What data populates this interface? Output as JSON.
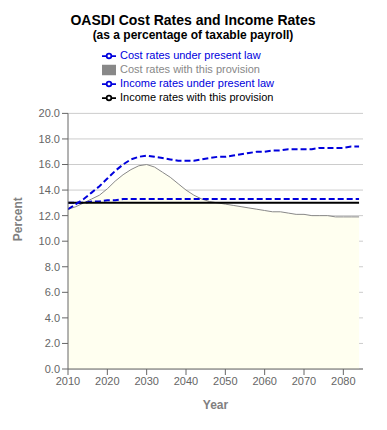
{
  "chart_data": {
    "type": "line",
    "title": "OASDI Cost Rates and Income Rates",
    "subtitle": "(as a percentage of taxable payroll)",
    "x_label": "Year",
    "y_label": "Percent",
    "x": [
      2010,
      2012,
      2014,
      2016,
      2018,
      2020,
      2022,
      2024,
      2026,
      2028,
      2030,
      2032,
      2034,
      2036,
      2038,
      2040,
      2042,
      2044,
      2046,
      2048,
      2050,
      2052,
      2054,
      2056,
      2058,
      2060,
      2062,
      2064,
      2066,
      2068,
      2070,
      2072,
      2074,
      2076,
      2078,
      2080,
      2082,
      2084
    ],
    "xlim": [
      2010,
      2085
    ],
    "xticks": [
      2010,
      2020,
      2030,
      2040,
      2050,
      2060,
      2070,
      2080
    ],
    "ylim": [
      0.0,
      20.0
    ],
    "yticks": [
      {
        "value": 0.0,
        "label": "0.0"
      },
      {
        "value": 2.0,
        "label": "2.0"
      },
      {
        "value": 4.0,
        "label": "4.0"
      },
      {
        "value": 6.0,
        "label": "6.0"
      },
      {
        "value": 8.0,
        "label": "8.0"
      },
      {
        "value": 10.0,
        "label": "10.0"
      },
      {
        "value": 12.0,
        "label": "12.0"
      },
      {
        "value": 14.0,
        "label": "14.0"
      },
      {
        "value": 16.0,
        "label": "16.0"
      },
      {
        "value": 18.0,
        "label": "18.0"
      },
      {
        "value": 20.0,
        "label": "20.0"
      }
    ],
    "grid": "y",
    "legend": "top",
    "series": [
      {
        "name": "Cost rates with this provision",
        "type": "area",
        "color": "#fffff0",
        "line_color": "#888888",
        "line_style": "solid",
        "values": [
          12.5,
          12.7,
          13.0,
          13.3,
          13.6,
          14.1,
          14.7,
          15.2,
          15.6,
          15.9,
          16.0,
          15.8,
          15.4,
          15.0,
          14.5,
          14.0,
          13.6,
          13.3,
          13.1,
          13.0,
          12.9,
          12.8,
          12.7,
          12.6,
          12.5,
          12.4,
          12.3,
          12.3,
          12.2,
          12.1,
          12.1,
          12.0,
          12.0,
          12.0,
          11.9,
          11.9,
          11.9,
          11.9
        ]
      },
      {
        "name": "Income rates under present law",
        "type": "line",
        "color": "#0000dd",
        "line_style": "dashed",
        "values": [
          13.0,
          13.0,
          13.0,
          13.1,
          13.1,
          13.2,
          13.2,
          13.3,
          13.3,
          13.3,
          13.3,
          13.3,
          13.3,
          13.3,
          13.3,
          13.3,
          13.3,
          13.3,
          13.3,
          13.3,
          13.3,
          13.3,
          13.3,
          13.3,
          13.3,
          13.3,
          13.3,
          13.3,
          13.3,
          13.3,
          13.3,
          13.3,
          13.3,
          13.3,
          13.3,
          13.3,
          13.3,
          13.3
        ]
      },
      {
        "name": "Income rates with this provision",
        "type": "line",
        "color": "#000000",
        "line_style": "solid",
        "values": [
          13.0,
          13.0,
          13.0,
          13.0,
          13.0,
          13.0,
          13.0,
          13.0,
          13.0,
          13.0,
          13.0,
          13.0,
          13.0,
          13.0,
          13.0,
          13.0,
          13.0,
          13.0,
          13.0,
          13.0,
          13.0,
          13.0,
          13.0,
          13.0,
          13.0,
          13.0,
          13.0,
          13.0,
          13.0,
          13.0,
          13.0,
          13.0,
          13.0,
          13.0,
          13.0,
          13.0,
          13.0,
          13.0
        ]
      },
      {
        "name": "Cost rates under present law",
        "type": "line",
        "color": "#0000dd",
        "line_style": "dashed",
        "values": [
          12.5,
          12.9,
          13.3,
          13.8,
          14.3,
          14.9,
          15.5,
          16.0,
          16.4,
          16.6,
          16.7,
          16.6,
          16.5,
          16.4,
          16.3,
          16.3,
          16.3,
          16.4,
          16.5,
          16.6,
          16.6,
          16.7,
          16.8,
          16.9,
          17.0,
          17.0,
          17.1,
          17.1,
          17.2,
          17.2,
          17.2,
          17.2,
          17.3,
          17.3,
          17.3,
          17.3,
          17.4,
          17.4
        ]
      }
    ]
  }
}
